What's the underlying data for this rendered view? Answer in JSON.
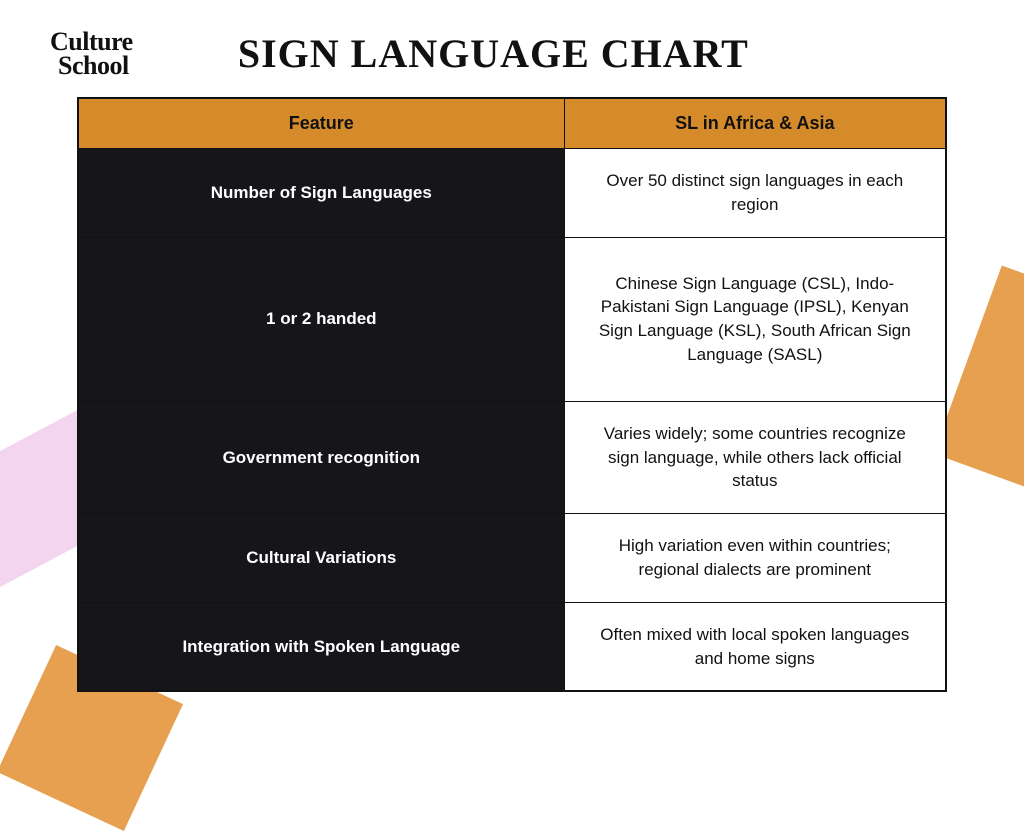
{
  "logo": {
    "line1": "Culture",
    "line2": "School"
  },
  "title": "SIGN LANGUAGE CHART",
  "table": {
    "headers": {
      "feature": "Feature",
      "region": "SL in Africa & Asia"
    },
    "header_bg": "#d68b2a",
    "feature_bg": "#16161a",
    "rows": [
      {
        "feature": "Number of Sign Languages",
        "value": "Over 50 distinct sign languages in each region"
      },
      {
        "feature": "1 or 2 handed",
        "value": "Chinese Sign Language (CSL), Indo-Pakistani Sign Language (IPSL), Kenyan Sign Language (KSL), South African Sign Language (SASL)"
      },
      {
        "feature": "Government recognition",
        "value": "Varies widely; some countries recognize sign language, while others lack official status"
      },
      {
        "feature": "Cultural Variations",
        "value": "High variation even within countries; regional dialects are prominent"
      },
      {
        "feature": "Integration with Spoken Language",
        "value": "Often mixed with local spoken languages and home signs"
      }
    ]
  },
  "decor": {
    "pink": "#f4d5f0",
    "orange": "#e6a050"
  }
}
